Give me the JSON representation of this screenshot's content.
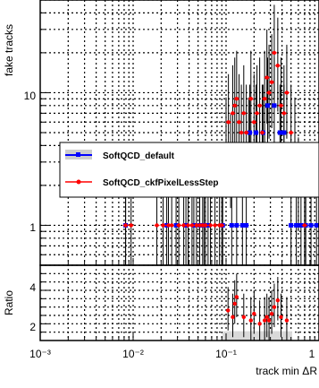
{
  "chart_data": [
    {
      "type": "scatter",
      "ylabel": "fake tracks",
      "yscale": "log",
      "xscale": "log",
      "xlim": [
        0.001,
        1
      ],
      "ylim": [
        0.5,
        50
      ],
      "grid": true,
      "y_tick_labels": [
        "10",
        "1"
      ],
      "legend": {
        "placement": "middle-left",
        "entries": [
          {
            "label": "SoftQCD_default",
            "color": "#0000ff"
          },
          {
            "label": "SoftQCD_ckfPixelLessStep",
            "color": "#ff0000"
          }
        ]
      },
      "series": [
        {
          "name": "SoftQCD_default",
          "color": "#0000ff",
          "x": [
            0.0083,
            0.023,
            0.029,
            0.037,
            0.045,
            0.052,
            0.058,
            0.064,
            0.092,
            0.115,
            0.13,
            0.15,
            0.165,
            0.18,
            0.21,
            0.25,
            0.28,
            0.33,
            0.38,
            0.42,
            0.5,
            0.57,
            0.64,
            0.72,
            0.82,
            0.94
          ],
          "y": [
            1,
            1,
            1,
            1,
            1,
            1,
            1,
            1,
            1,
            1,
            1,
            1,
            1,
            5,
            5,
            5,
            8,
            8,
            5,
            5,
            1,
            1,
            1,
            1,
            1,
            1
          ]
        },
        {
          "name": "SoftQCD_ckfPixelLessStep",
          "color": "#ff0000",
          "x": [
            0.0083,
            0.0095,
            0.018,
            0.021,
            0.024,
            0.026,
            0.031,
            0.035,
            0.039,
            0.043,
            0.048,
            0.052,
            0.056,
            0.06,
            0.068,
            0.076,
            0.085,
            0.09,
            0.1,
            0.106,
            0.112,
            0.118,
            0.124,
            0.13,
            0.138,
            0.146,
            0.155,
            0.165,
            0.175,
            0.185,
            0.2,
            0.215,
            0.23,
            0.245,
            0.26,
            0.275,
            0.29,
            0.31,
            0.33,
            0.36,
            0.39,
            0.42,
            0.45,
            0.5,
            0.55,
            0.6,
            0.7
          ],
          "y": [
            1,
            1,
            1,
            1,
            1,
            1,
            1,
            1,
            1,
            1,
            1,
            1,
            1,
            1,
            1,
            1,
            1,
            1,
            4,
            6,
            3,
            7,
            8,
            9,
            6,
            5,
            7,
            5,
            4,
            9,
            6,
            7,
            8,
            5,
            9,
            13,
            10,
            12,
            20,
            16,
            8,
            7,
            10,
            5,
            4,
            2,
            1
          ]
        }
      ]
    },
    {
      "type": "scatter",
      "ylabel": "Ratio",
      "xlabel": "track min ΔR",
      "xscale": "log",
      "xlim": [
        0.001,
        1
      ],
      "ylim": [
        1,
        5.5
      ],
      "grid": true,
      "y_tick_labels": [
        "4",
        "2"
      ],
      "x_tick_labels": [
        "10⁻³",
        "10⁻²",
        "10⁻¹",
        "1"
      ],
      "series": [
        {
          "name": "SoftQCD_ckfPixelLessStep",
          "color": "#ff0000",
          "x": [
            0.105,
            0.118,
            0.124,
            0.13,
            0.155,
            0.185,
            0.2,
            0.23,
            0.26,
            0.275,
            0.29,
            0.31,
            0.33,
            0.36,
            0.39,
            0.45
          ],
          "y": [
            2.8,
            2.4,
            3.2,
            3.6,
            2.4,
            2.2,
            2.6,
            2.0,
            2.2,
            2.4,
            2.2,
            2.6,
            3.0,
            3.4,
            2.4,
            2.2
          ]
        }
      ]
    }
  ]
}
